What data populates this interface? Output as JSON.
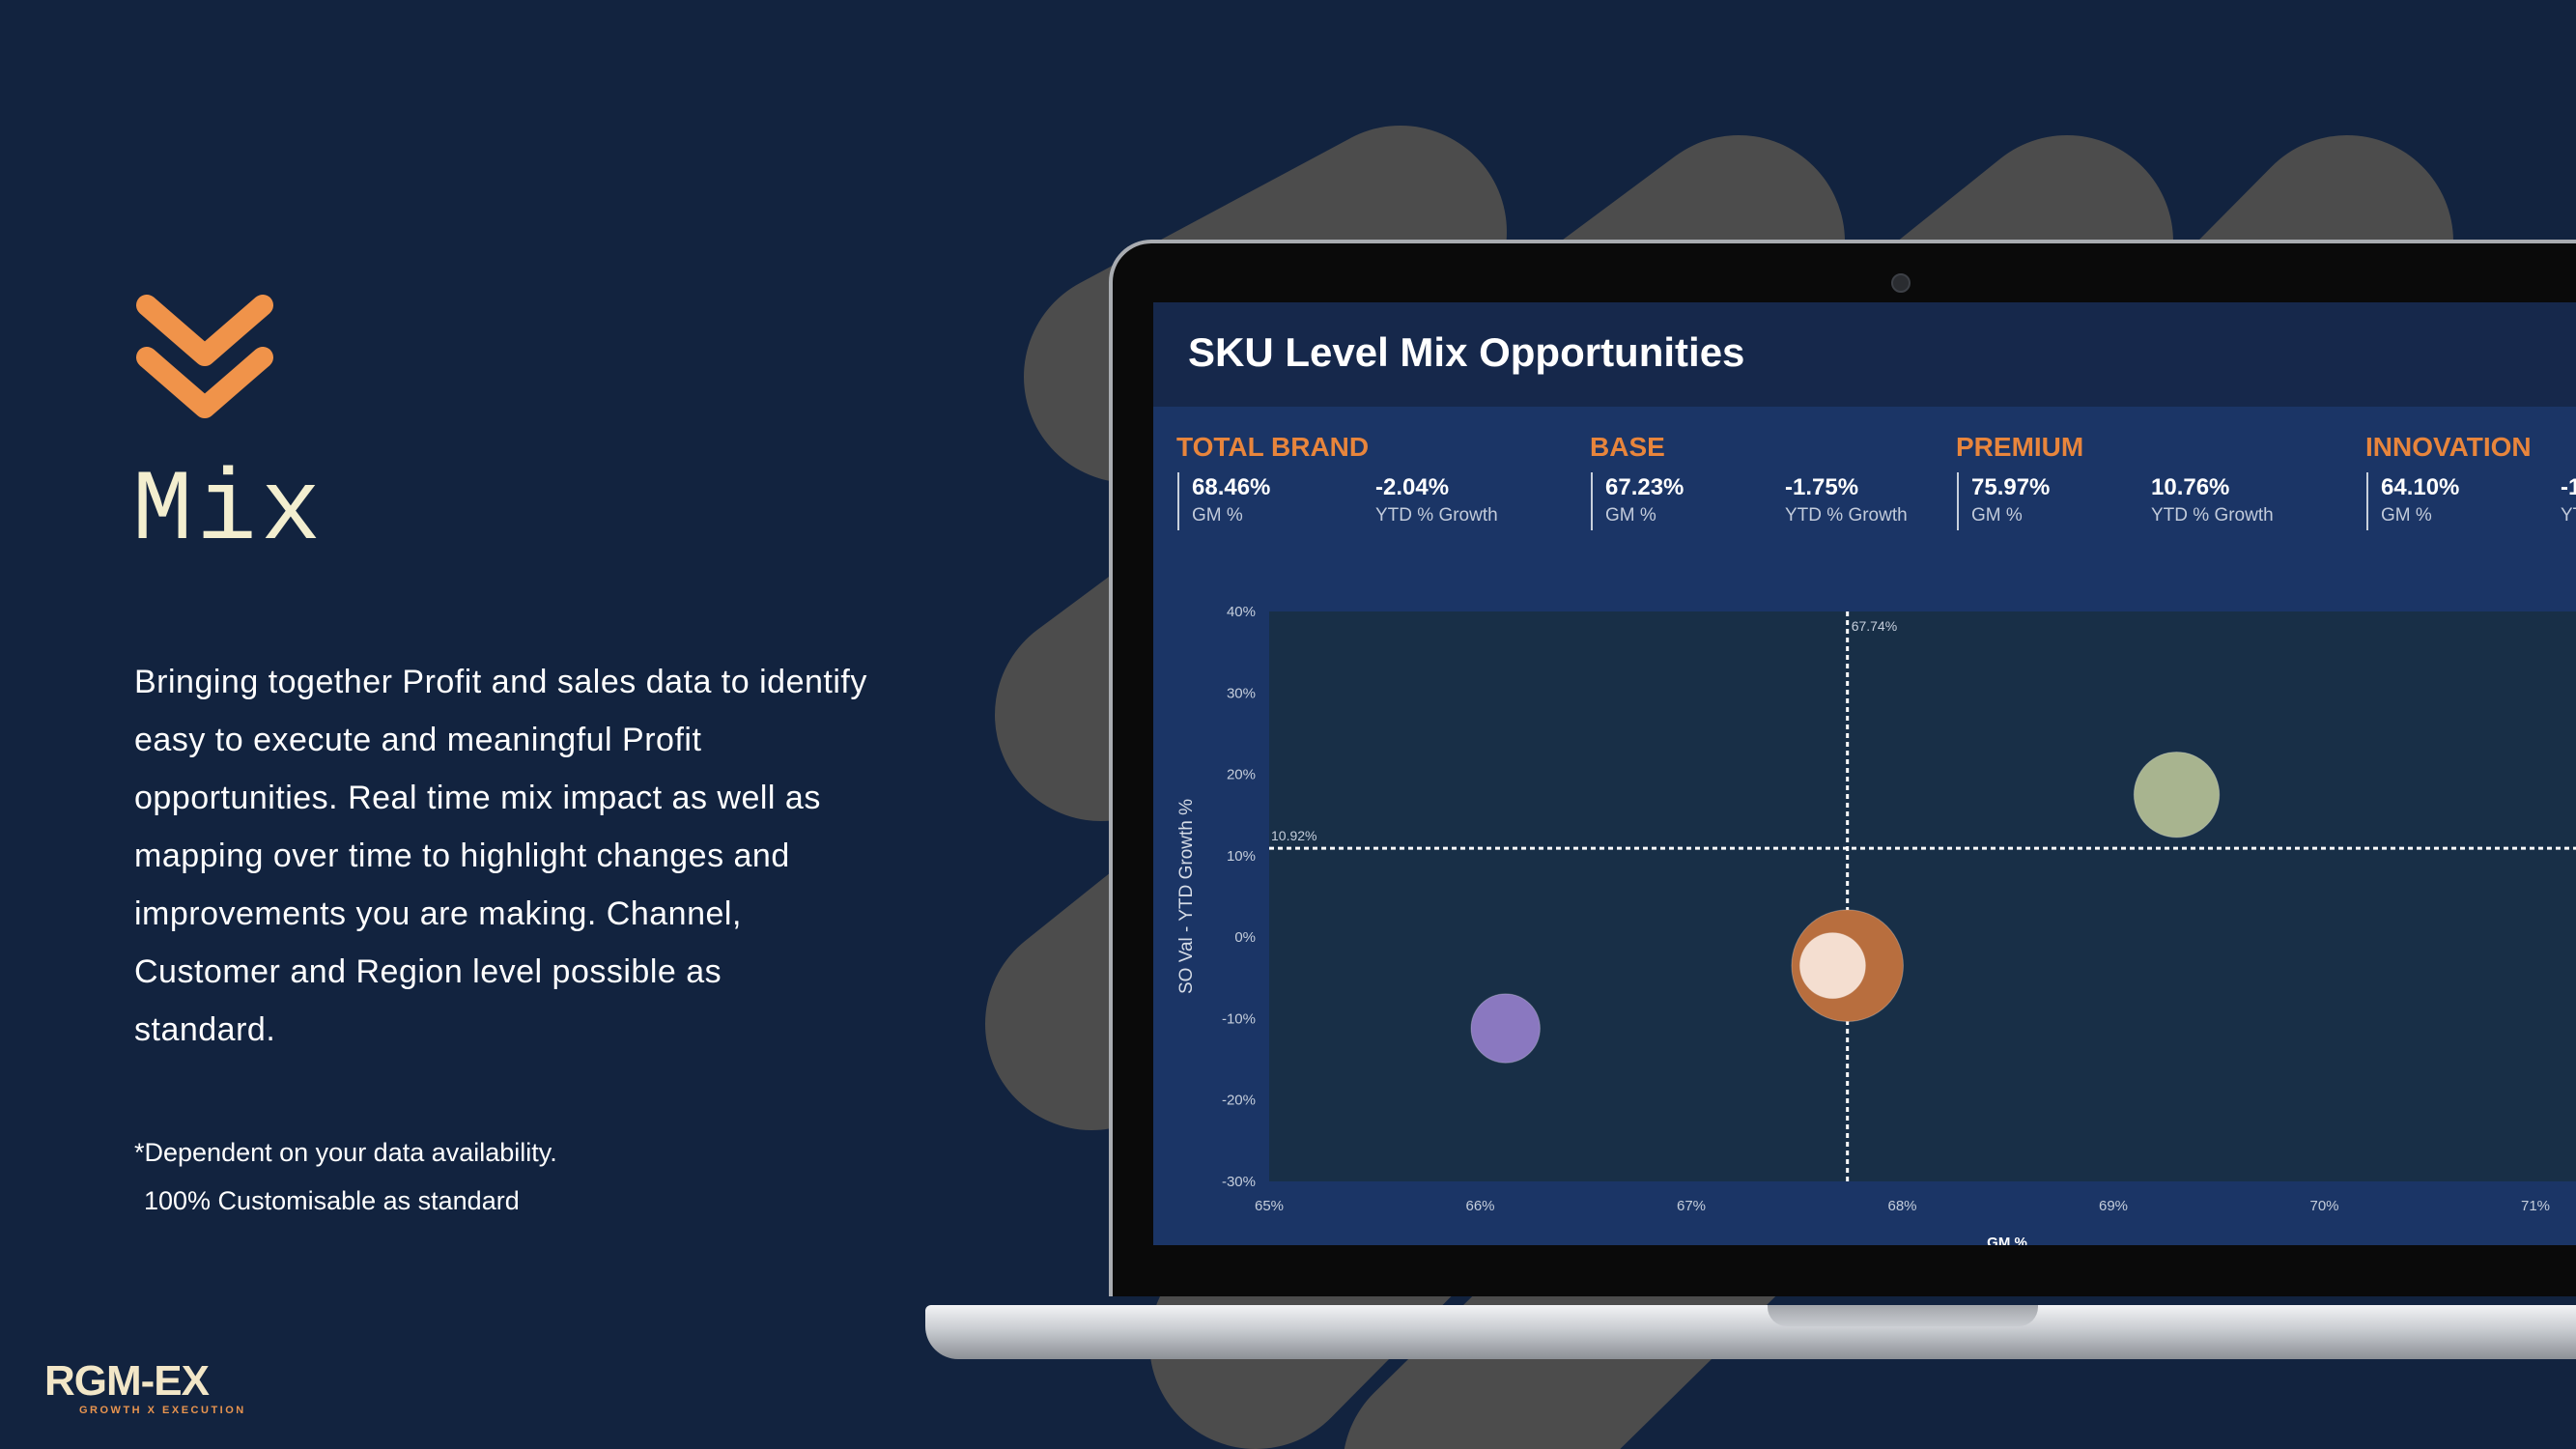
{
  "page": {
    "title": "Mix",
    "description": "Bringing together Profit and sales data to identify easy to execute and meaningful Profit opportunities. Real time mix impact as well as mapping over time to highlight changes and improvements you are making. Channel, Customer and Region level possible as standard.",
    "note_line1": "*Dependent on your data availability.",
    "note_line2": "100% Customisable as standard",
    "logo_main": "RGM-EX",
    "logo_sub": "GROWTH X EXECUTION",
    "colors": {
      "background": "#12233f",
      "accent": "#f0934a",
      "title": "#f3eecf"
    }
  },
  "dashboard": {
    "title": "SKU Level Mix Opportunities",
    "kpis": [
      {
        "label": "TOTAL BRAND",
        "gm": "68.46%",
        "gm_label": "GM %",
        "growth": "-2.04%",
        "growth_label": "YTD % Growth"
      },
      {
        "label": "BASE",
        "gm": "67.23%",
        "gm_label": "GM %",
        "growth": "-1.75%",
        "growth_label": "YTD % Growth"
      },
      {
        "label": "PREMIUM",
        "gm": "75.97%",
        "gm_label": "GM %",
        "growth": "10.76%",
        "growth_label": "YTD % Growth"
      },
      {
        "label": "INNOVATION",
        "gm": "64.10%",
        "gm_label": "GM %",
        "growth": "-1",
        "growth_label": "YT"
      }
    ]
  },
  "chart_data": {
    "type": "scatter",
    "title": "SKU Level Mix Opportunities",
    "xlabel": "GM %",
    "ylabel": "SO Val - YTD Growth %",
    "xlim": [
      65,
      71
    ],
    "ylim": [
      -30,
      40
    ],
    "x_ticks": [
      "65%",
      "66%",
      "67%",
      "68%",
      "69%",
      "70%",
      "71%"
    ],
    "y_ticks": [
      "40%",
      "30%",
      "20%",
      "10%",
      "0%",
      "-10%",
      "-20%",
      "-30%"
    ],
    "reference_lines": {
      "x": 67.74,
      "x_label": "67.74%",
      "y": 10.92,
      "y_label": "10.92%"
    },
    "points": [
      {
        "x": 66.12,
        "y": -11.2,
        "size": 21,
        "color": "#8a78c0"
      },
      {
        "x": 67.74,
        "y": -3.5,
        "size": 34,
        "color": "#b86e3e"
      },
      {
        "x": 67.67,
        "y": -3.5,
        "size": 20,
        "color": "#f4ded0"
      },
      {
        "x": 69.3,
        "y": 17.5,
        "size": 26,
        "color": "#a8b48f"
      }
    ]
  }
}
